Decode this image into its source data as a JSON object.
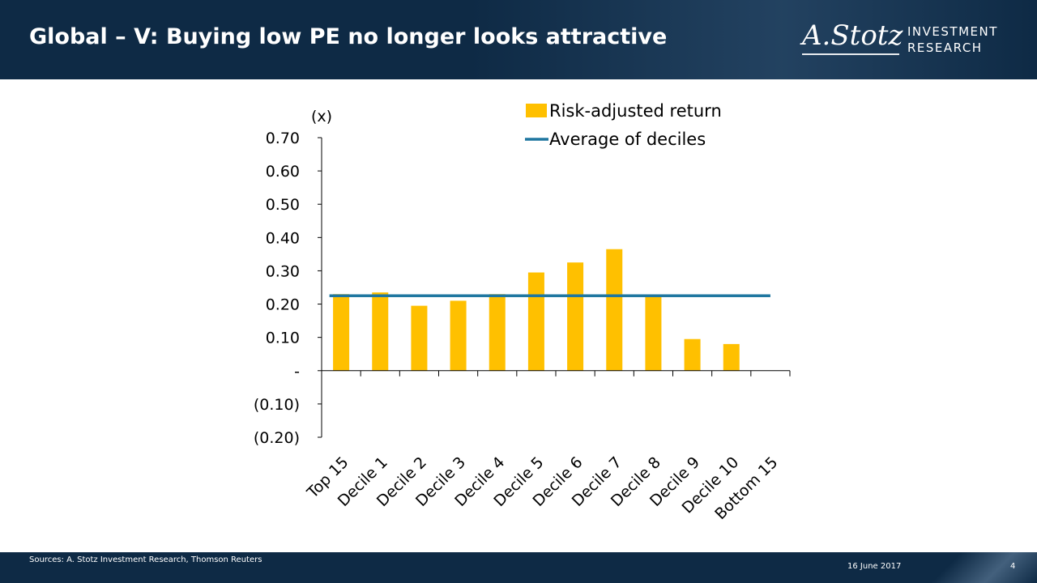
{
  "header": {
    "title": "Global – V: Buying low PE no longer looks attractive",
    "logo_script": "A.Stotz",
    "logo_line1": "INVESTMENT",
    "logo_line2": "RESEARCH"
  },
  "footer": {
    "source": "Sources: A. Stotz Investment Research, Thomson Reuters",
    "date": "16 June 2017",
    "page": "4"
  },
  "colors": {
    "bar": "#FFC000",
    "average_line": "#1F77A0",
    "header_bg": "#0E2A45"
  },
  "chart_data": {
    "type": "bar",
    "unit_label": "(x)",
    "categories": [
      "Top 15",
      "Decile 1",
      "Decile 2",
      "Decile 3",
      "Decile 4",
      "Decile 5",
      "Decile 6",
      "Decile 7",
      "Decile 8",
      "Decile 9",
      "Decile 10",
      "Bottom 15"
    ],
    "series": [
      {
        "name": "Risk-adjusted return",
        "kind": "bar",
        "values": [
          0.23,
          0.235,
          0.195,
          0.21,
          0.23,
          0.295,
          0.325,
          0.365,
          0.225,
          0.095,
          0.08,
          0.0
        ]
      },
      {
        "name": "Average of deciles",
        "kind": "line",
        "values": [
          0.225,
          0.225,
          0.225,
          0.225,
          0.225,
          0.225,
          0.225,
          0.225,
          0.225,
          0.225,
          0.225,
          0.225
        ]
      }
    ],
    "yticks": [
      {
        "value": 0.7,
        "label": "0.70"
      },
      {
        "value": 0.6,
        "label": "0.60"
      },
      {
        "value": 0.5,
        "label": "0.50"
      },
      {
        "value": 0.4,
        "label": "0.40"
      },
      {
        "value": 0.3,
        "label": "0.30"
      },
      {
        "value": 0.2,
        "label": "0.20"
      },
      {
        "value": 0.1,
        "label": "0.10"
      },
      {
        "value": 0.0,
        "label": "-"
      },
      {
        "value": -0.1,
        "label": "(0.10)"
      },
      {
        "value": -0.2,
        "label": "(0.20)"
      }
    ],
    "ylim": [
      -0.2,
      0.7
    ],
    "grid": false,
    "legend_position": "top-right"
  }
}
